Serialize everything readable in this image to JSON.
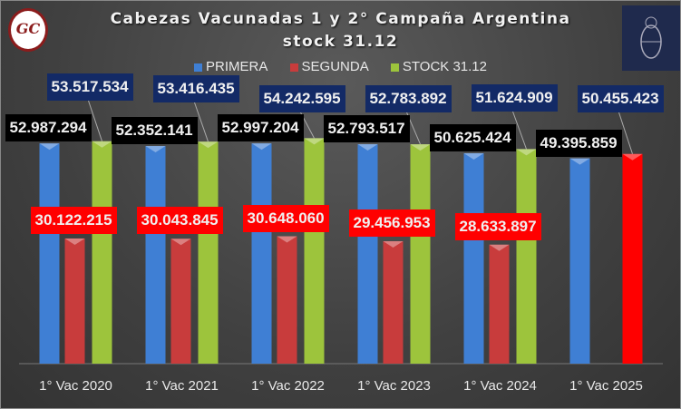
{
  "chart_data": {
    "type": "bar",
    "title": "Cabezas Vacunadas 1 y 2° Campaña Argentina",
    "subtitle": "stock 31.12",
    "categories": [
      "1° Vac 2020",
      "1° Vac 2021",
      "1° Vac 2022",
      "1° Vac 2023",
      "1° Vac 2024",
      "1° Vac 2025"
    ],
    "series": [
      {
        "name": "PRIMERA",
        "color": "#3f7fd4",
        "values": [
          52987294,
          52352141,
          52997204,
          52793517,
          50625424,
          49395859
        ],
        "labels": [
          "52.987.294",
          "52.352.141",
          "52.997.204",
          "52.793.517",
          "50.625.424",
          "49.395.859"
        ],
        "label_bg": "#000000"
      },
      {
        "name": "SEGUNDA",
        "color": "#c83c3c",
        "values": [
          30122215,
          30043845,
          30648060,
          29456953,
          28633897,
          null
        ],
        "labels": [
          "30.122.215",
          "30.043.845",
          "30.648.060",
          "29.456.953",
          "28.633.897",
          ""
        ],
        "label_bg": "#ff0000"
      },
      {
        "name": "STOCK 31.12",
        "color": "#9dc43c",
        "highlight_color": "#ff0000",
        "highlight_index": 5,
        "values": [
          53517534,
          53416435,
          54242595,
          52783892,
          51624909,
          50455423
        ],
        "labels": [
          "53.517.534",
          "53.416.435",
          "54.242.595",
          "52.783.892",
          "51.624.909",
          "50.455.423"
        ],
        "label_bg": "#132a66"
      }
    ],
    "ylim": [
      0,
      60000000
    ],
    "grid": false,
    "legend": "top",
    "xlabel": "",
    "ylabel": ""
  },
  "logos": {
    "left": "GC",
    "right": "argentina-coat-of-arms"
  }
}
